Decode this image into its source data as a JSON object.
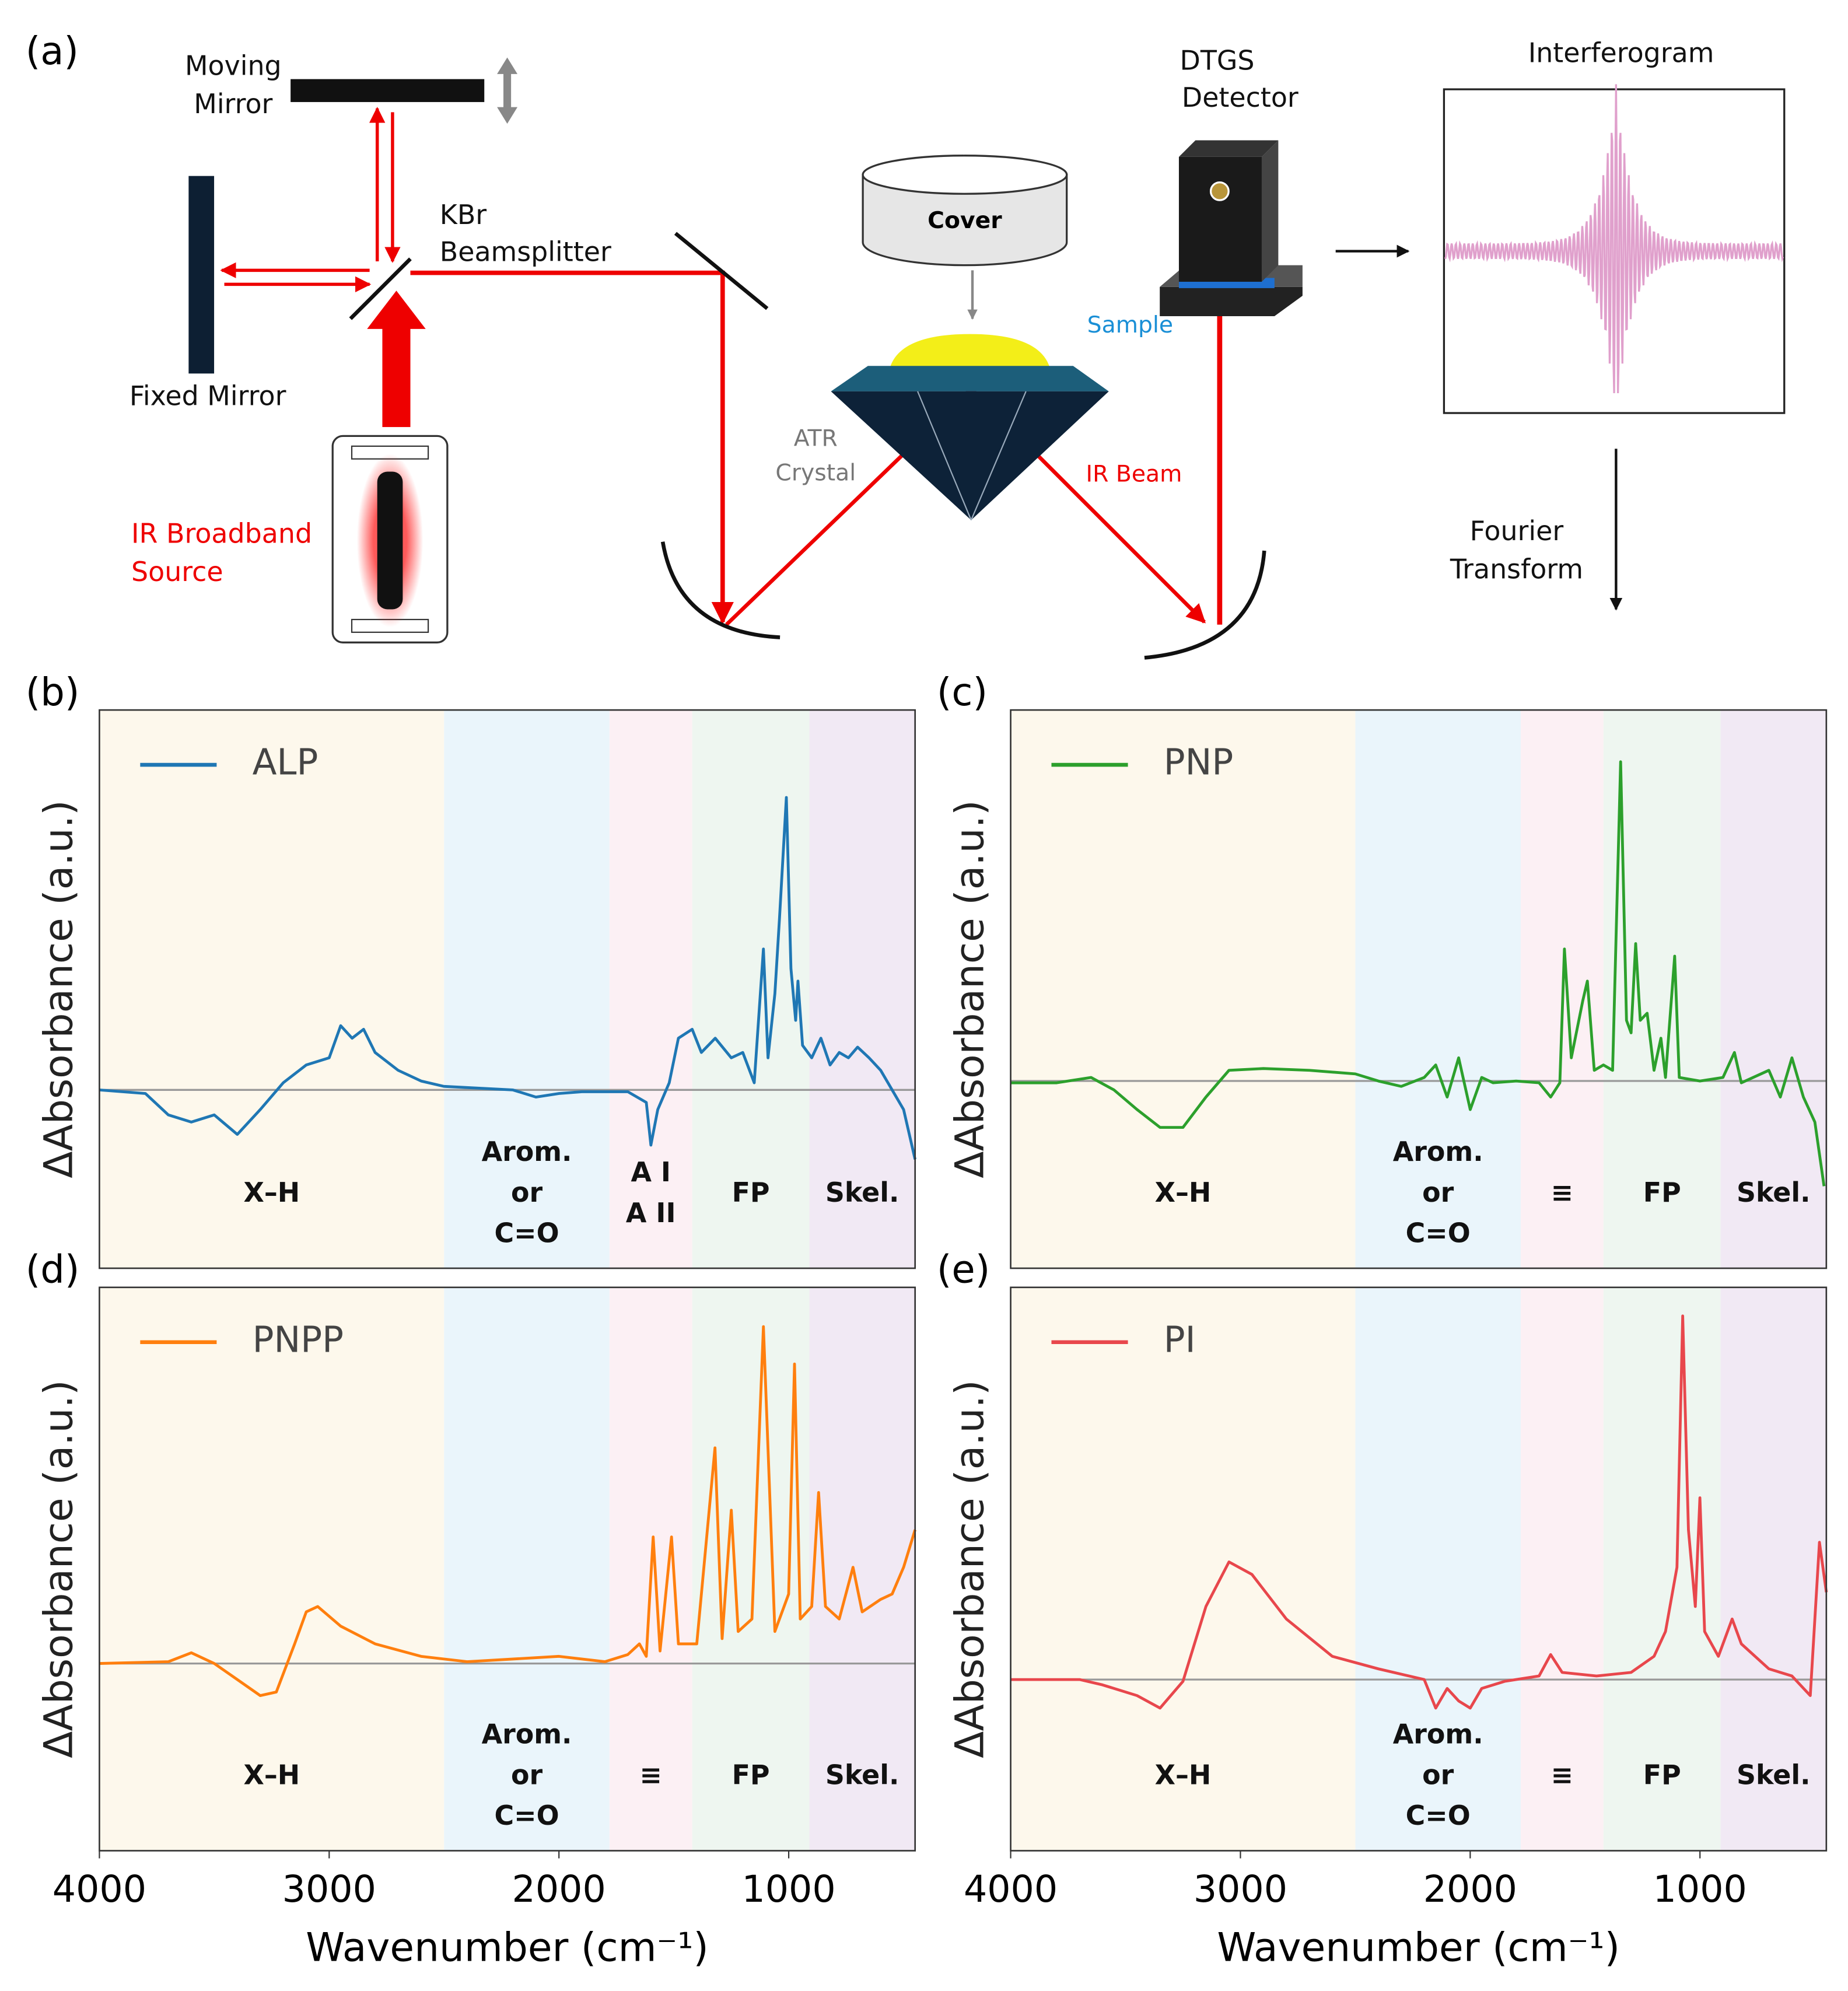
{
  "diagram": {
    "panel": "(a)",
    "moving_mirror": [
      "Moving",
      "Mirror"
    ],
    "fixed_mirror": "Fixed Mirror",
    "beamsplitter": [
      "KBr",
      "Beamsplitter"
    ],
    "source": [
      "IR Broadband",
      "Source"
    ],
    "cover": "Cover",
    "sample": "Sample",
    "crystal": [
      "ATR",
      "Crystal"
    ],
    "beam": "IR Beam",
    "detector": [
      "DTGS",
      "Detector"
    ],
    "interferogram": "Interferogram",
    "transform": [
      "Fourier",
      "Transform"
    ]
  },
  "chart_data": [
    {
      "type": "line",
      "panel": "(b)",
      "ylabel": "ΔAbsorbance (a.u.)",
      "xlim": [
        4000,
        450
      ],
      "ylim": [
        -1,
        2.13
      ],
      "x": [
        4000,
        3800,
        3700,
        3600,
        3500,
        3400,
        3300,
        3200,
        3100,
        3000,
        2950,
        2900,
        2850,
        2800,
        2700,
        2600,
        2500,
        2200,
        2100,
        2000,
        1900,
        1800,
        1700,
        1620,
        1600,
        1570,
        1520,
        1480,
        1420,
        1380,
        1320,
        1250,
        1200,
        1150,
        1110,
        1090,
        1060,
        1040,
        1010,
        990,
        970,
        960,
        940,
        900,
        860,
        820,
        780,
        740,
        700,
        650,
        600,
        550,
        500,
        450
      ],
      "series": [
        {
          "name": "ALP",
          "color": "#1f77b4",
          "values": [
            0,
            -0.02,
            -0.14,
            -0.18,
            -0.14,
            -0.25,
            -0.11,
            0.04,
            0.14,
            0.18,
            0.36,
            0.29,
            0.34,
            0.21,
            0.11,
            0.05,
            0.02,
            0,
            -0.04,
            -0.02,
            -0.01,
            -0.01,
            -0.01,
            -0.07,
            -0.31,
            -0.11,
            0.04,
            0.29,
            0.34,
            0.21,
            0.29,
            0.18,
            0.21,
            0.04,
            0.79,
            0.18,
            0.54,
            0.96,
            1.64,
            0.68,
            0.39,
            0.61,
            0.25,
            0.18,
            0.29,
            0.14,
            0.21,
            0.18,
            0.24,
            0.18,
            0.11,
            0,
            -0.11,
            -0.39
          ]
        }
      ],
      "regions": [
        {
          "lines": [
            "X–H"
          ],
          "from": 4000,
          "to": 2500,
          "color": "#fdf8ec"
        },
        {
          "lines": [
            "Arom.",
            "or",
            "C=O"
          ],
          "from": 2500,
          "to": 1780,
          "color": "#eaf5fb"
        },
        {
          "lines": [
            "A I",
            "A II"
          ],
          "from": 1780,
          "to": 1420,
          "color": "#fcf0f4"
        },
        {
          "lines": [
            "FP"
          ],
          "from": 1420,
          "to": 910,
          "color": "#eef6f0"
        },
        {
          "lines": [
            "Skel."
          ],
          "from": 910,
          "to": 450,
          "color": "#f1e9f4"
        }
      ]
    },
    {
      "type": "line",
      "panel": "(c)",
      "ylabel": "ΔAbsorbance (a.u.)",
      "xlim": [
        4000,
        450
      ],
      "ylim": [
        -1.05,
        2.08
      ],
      "x": [
        4000,
        3800,
        3650,
        3550,
        3450,
        3350,
        3250,
        3150,
        3050,
        2900,
        2700,
        2500,
        2400,
        2300,
        2200,
        2150,
        2100,
        2050,
        2000,
        1950,
        1900,
        1800,
        1700,
        1650,
        1610,
        1590,
        1560,
        1510,
        1490,
        1460,
        1420,
        1380,
        1345,
        1320,
        1300,
        1280,
        1260,
        1230,
        1200,
        1170,
        1150,
        1110,
        1090,
        1000,
        900,
        850,
        820,
        700,
        650,
        600,
        550,
        500,
        460
      ],
      "series": [
        {
          "name": "PNP",
          "color": "#2ca02c",
          "values": [
            -0.01,
            -0.01,
            0.02,
            -0.05,
            -0.16,
            -0.26,
            -0.26,
            -0.09,
            0.06,
            0.07,
            0.06,
            0.04,
            0,
            -0.03,
            0.02,
            0.09,
            -0.09,
            0.13,
            -0.16,
            0.02,
            -0.01,
            0,
            -0.01,
            -0.09,
            -0.01,
            0.74,
            0.13,
            0.45,
            0.56,
            0.06,
            0.09,
            0.06,
            1.79,
            0.34,
            0.27,
            0.77,
            0.34,
            0.38,
            0.06,
            0.24,
            0.02,
            0.7,
            0.02,
            0,
            0.02,
            0.16,
            -0.01,
            0.06,
            -0.09,
            0.13,
            -0.09,
            -0.23,
            -0.59
          ]
        }
      ],
      "regions": [
        {
          "lines": [
            "X–H"
          ],
          "from": 4000,
          "to": 2500,
          "color": "#fdf8ec"
        },
        {
          "lines": [
            "Arom.",
            "or",
            "C=O"
          ],
          "from": 2500,
          "to": 1780,
          "color": "#eaf5fb"
        },
        {
          "lines": [
            "≡"
          ],
          "from": 1780,
          "to": 1420,
          "color": "#fcf0f4"
        },
        {
          "lines": [
            "FP"
          ],
          "from": 1420,
          "to": 910,
          "color": "#eef6f0"
        },
        {
          "lines": [
            "Skel."
          ],
          "from": 910,
          "to": 450,
          "color": "#f1e9f4"
        }
      ]
    },
    {
      "type": "line",
      "panel": "(d)",
      "ylabel": "ΔAbsorbance (a.u.)",
      "xlabel": "Wavenumber (cm⁻¹)",
      "xlim": [
        4000,
        450
      ],
      "ylim": [
        -1.05,
        2.11
      ],
      "xticks": [
        4000,
        3000,
        2000,
        1000
      ],
      "x": [
        4000,
        3700,
        3600,
        3500,
        3400,
        3300,
        3230,
        3150,
        3100,
        3050,
        2950,
        2800,
        2600,
        2400,
        2000,
        1800,
        1700,
        1650,
        1620,
        1590,
        1560,
        1510,
        1480,
        1400,
        1321,
        1290,
        1250,
        1220,
        1160,
        1110,
        1060,
        1000,
        975,
        950,
        900,
        870,
        840,
        780,
        720,
        680,
        600,
        550,
        500,
        450
      ],
      "series": [
        {
          "name": "PNPP",
          "color": "#ff7f0e",
          "values": [
            0,
            0.01,
            0.06,
            0,
            -0.09,
            -0.18,
            -0.16,
            0.11,
            0.29,
            0.32,
            0.21,
            0.11,
            0.04,
            0.01,
            0.04,
            0.01,
            0.05,
            0.11,
            0.04,
            0.71,
            0.07,
            0.71,
            0.11,
            0.11,
            1.21,
            0.14,
            0.86,
            0.18,
            0.25,
            1.89,
            0.18,
            0.39,
            1.68,
            0.25,
            0.32,
            0.96,
            0.32,
            0.25,
            0.54,
            0.29,
            0.36,
            0.39,
            0.54,
            0.75
          ]
        }
      ],
      "regions": [
        {
          "lines": [
            "X–H"
          ],
          "from": 4000,
          "to": 2500,
          "color": "#fdf8ec"
        },
        {
          "lines": [
            "Arom.",
            "or",
            "C=O"
          ],
          "from": 2500,
          "to": 1780,
          "color": "#eaf5fb"
        },
        {
          "lines": [
            "≡"
          ],
          "from": 1780,
          "to": 1420,
          "color": "#fcf0f4"
        },
        {
          "lines": [
            "FP"
          ],
          "from": 1420,
          "to": 910,
          "color": "#eef6f0"
        },
        {
          "lines": [
            "Skel."
          ],
          "from": 910,
          "to": 450,
          "color": "#f1e9f4"
        }
      ]
    },
    {
      "type": "line",
      "panel": "(e)",
      "ylabel": "ΔAbsorbance (a.u.)",
      "xlabel": "Wavenumber (cm⁻¹)",
      "xlim": [
        4000,
        450
      ],
      "ylim": [
        -0.96,
        2.2
      ],
      "xticks": [
        4000,
        3000,
        2000,
        1000
      ],
      "x": [
        4000,
        3700,
        3600,
        3450,
        3350,
        3250,
        3150,
        3050,
        2950,
        2800,
        2600,
        2400,
        2200,
        2150,
        2100,
        2050,
        2000,
        1950,
        1850,
        1700,
        1650,
        1600,
        1450,
        1300,
        1200,
        1150,
        1100,
        1075,
        1050,
        1020,
        1000,
        980,
        920,
        860,
        820,
        700,
        600,
        520,
        480,
        450
      ],
      "series": [
        {
          "name": "PI",
          "color": "#e8474c",
          "values": [
            0,
            0,
            -0.03,
            -0.09,
            -0.16,
            -0.01,
            0.41,
            0.66,
            0.59,
            0.34,
            0.13,
            0.06,
            0,
            -0.16,
            -0.05,
            -0.12,
            -0.16,
            -0.05,
            -0.01,
            0.02,
            0.14,
            0.04,
            0.02,
            0.04,
            0.13,
            0.27,
            0.63,
            2.04,
            0.84,
            0.41,
            1.02,
            0.27,
            0.13,
            0.34,
            0.2,
            0.06,
            0.02,
            -0.09,
            0.77,
            0.49
          ]
        }
      ],
      "regions": [
        {
          "lines": [
            "X–H"
          ],
          "from": 4000,
          "to": 2500,
          "color": "#fdf8ec"
        },
        {
          "lines": [
            "Arom.",
            "or",
            "C=O"
          ],
          "from": 2500,
          "to": 1780,
          "color": "#eaf5fb"
        },
        {
          "lines": [
            "≡"
          ],
          "from": 1780,
          "to": 1420,
          "color": "#fcf0f4"
        },
        {
          "lines": [
            "FP"
          ],
          "from": 1420,
          "to": 910,
          "color": "#eef6f0"
        },
        {
          "lines": [
            "Skel."
          ],
          "from": 910,
          "to": 450,
          "color": "#f1e9f4"
        }
      ]
    }
  ]
}
